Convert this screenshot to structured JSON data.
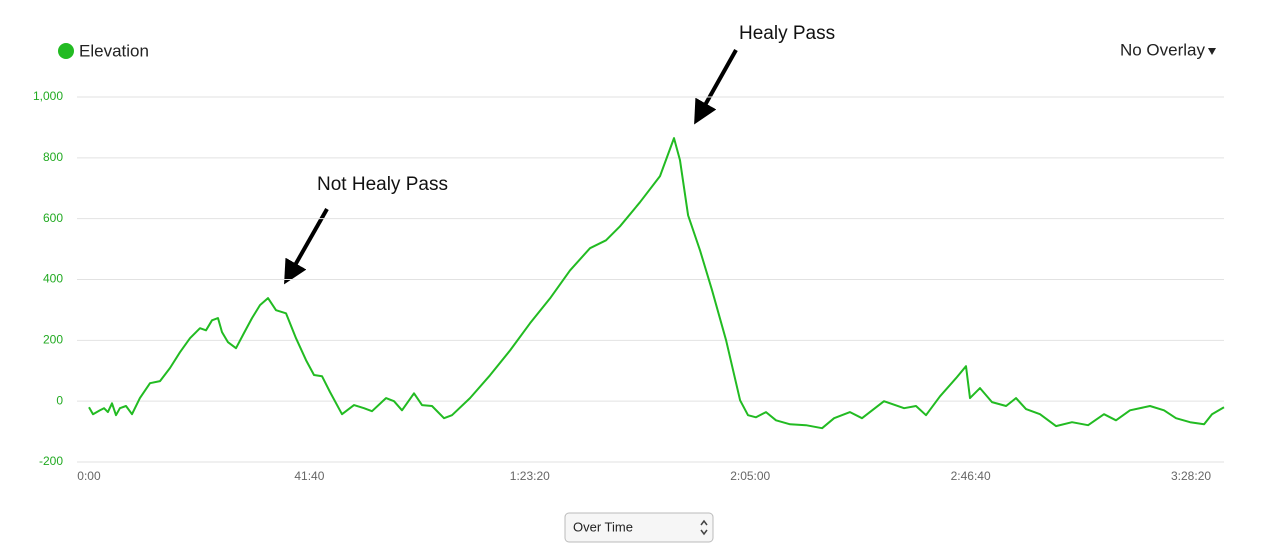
{
  "chart_data": {
    "type": "line",
    "legend_label": "Elevation",
    "overlay": "No Overlay",
    "mode": "Over Time",
    "annotations": [
      "Not Healy Pass",
      "Healy Pass"
    ],
    "x": [
      0,
      45,
      125,
      170,
      215,
      261,
      306,
      351,
      420,
      488,
      578,
      692,
      805,
      919,
      1032,
      1146,
      1259,
      1327,
      1395,
      1463,
      1509,
      1577,
      1667,
      1758,
      1849,
      1940,
      2030,
      2121,
      2235,
      2348,
      2462,
      2552,
      2643,
      2734,
      2870,
      3006,
      3119,
      3210,
      3369,
      3460,
      3550,
      3686,
      3777,
      3891,
      4027,
      4117,
      4322,
      4549,
      4776,
      5002,
      5229,
      5456,
      5683,
      5864,
      6023,
      6250,
      6477,
      6636,
      6704,
      6795,
      6931,
      7067,
      7226,
      7385,
      7475,
      7566,
      7679,
      7793,
      7952,
      8133,
      8315,
      8451,
      8632,
      8768,
      9018,
      9245,
      9381,
      9494,
      9653,
      9835,
      9948,
      9993,
      10106,
      10243,
      10402,
      10515,
      10628,
      10787,
      10969,
      11150,
      11332,
      11513,
      11649,
      11808,
      12035,
      12194,
      12330,
      12489,
      12648,
      12738,
      12874
    ],
    "series": [
      {
        "name": "Elevation",
        "color": "#22bb22",
        "values": [
          -20,
          -43,
          -30,
          -23,
          -36,
          -7,
          -46,
          -23,
          -16,
          -43,
          10,
          59,
          66,
          109,
          161,
          207,
          240,
          233,
          266,
          273,
          227,
          194,
          174,
          224,
          273,
          316,
          339,
          299,
          289,
          207,
          135,
          86,
          82,
          30,
          -43,
          -13,
          -23,
          -33,
          10,
          0,
          -30,
          26,
          -13,
          -16,
          -56,
          -46,
          10,
          85,
          167,
          256,
          338,
          430,
          503,
          529,
          575,
          654,
          740,
          865,
          792,
          611,
          496,
          365,
          200,
          3,
          -46,
          -53,
          -36,
          -63,
          -76,
          -79,
          -89,
          -56,
          -36,
          -56,
          0,
          -23,
          -16,
          -46,
          16,
          76,
          115,
          10,
          43,
          -3,
          -16,
          10,
          -26,
          -43,
          -82,
          -69,
          -79,
          -43,
          -63,
          -30,
          -16,
          -30,
          -56,
          -69,
          -76,
          -43,
          -20
        ]
      }
    ],
    "xlim": [
      -136,
      12874
    ],
    "xticks": [
      {
        "value": 0,
        "label": "0:00"
      },
      {
        "value": 2500,
        "label": "41:40"
      },
      {
        "value": 5000,
        "label": "1:23:20"
      },
      {
        "value": 7500,
        "label": "2:05:00"
      },
      {
        "value": 10000,
        "label": "2:46:40"
      },
      {
        "value": 12500,
        "label": "3:28:20"
      }
    ],
    "ylim": [
      -200,
      1000
    ],
    "yticks": [
      -200,
      0,
      200,
      400,
      600,
      800,
      {
        "value": 1000,
        "label": "1,000"
      }
    ],
    "grid": true
  }
}
